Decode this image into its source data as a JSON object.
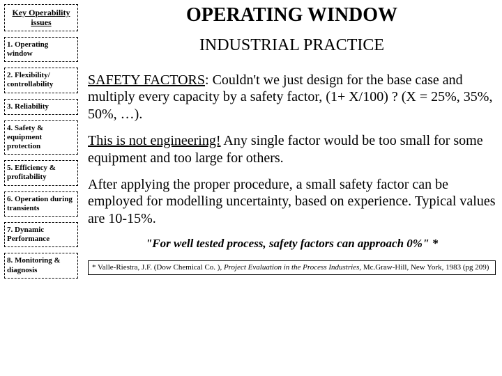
{
  "sidebar": {
    "header": "Key Operability issues",
    "items": [
      "1. Operating window",
      "2. Flexibility/ controllability",
      "3. Reliability",
      "4. Safety & equipment protection",
      "5. Efficiency & profitability",
      "6. Operation during transients",
      "7. Dynamic Performance",
      "8. Monitoring & diagnosis"
    ]
  },
  "main": {
    "title": "OPERATING WINDOW",
    "subtitle": "INDUSTRIAL PRACTICE",
    "p1_lead": "SAFETY FACTORS",
    "p1_rest": ": Couldn't we just design for the base case and multiply every capacity by a safety factor, (1+ X/100) ? (X = 25%, 35%, 50%, …).",
    "p2_lead": "This is not engineering!",
    "p2_rest": " Any single factor would be too small for some equipment and too large for others.",
    "p3": "After applying the proper procedure, a small safety factor can be employed for modelling uncertainty, based on experience. Typical values are 10-15%.",
    "quote": "\"For well tested process, safety factors can approach 0%\" *",
    "footnote_pre": "* Valle-Riestra, J.F. (Dow Chemical Co. ), ",
    "footnote_ital": "Project Evaluation in the Process Industries",
    "footnote_post": ", Mc.Graw-Hill, New York, 1983 (pg 209)"
  },
  "colors": {
    "background": "#ffffff",
    "text": "#000000",
    "border": "#000000"
  }
}
